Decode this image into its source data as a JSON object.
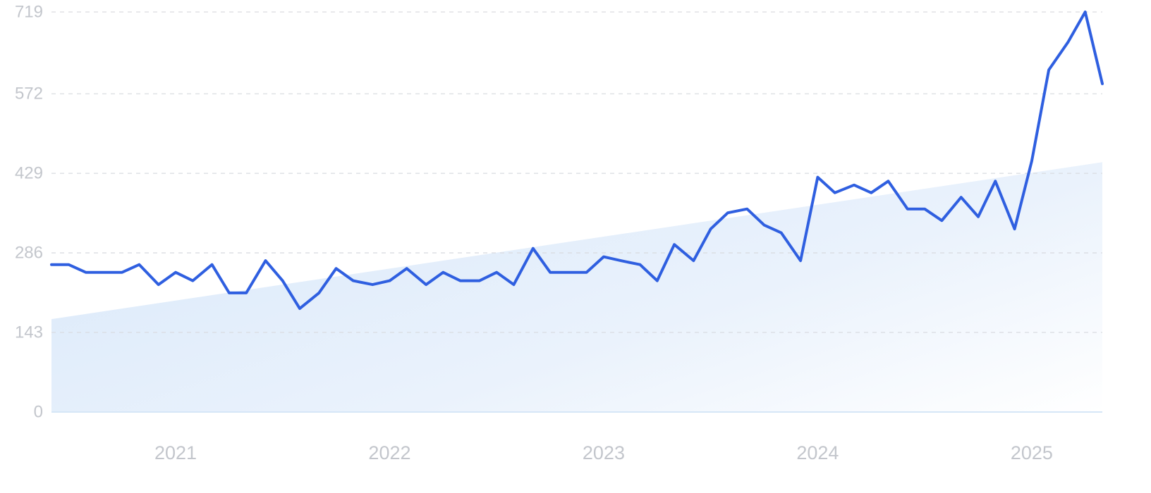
{
  "chart_data": {
    "type": "line",
    "title": "",
    "xlabel": "",
    "ylabel": "",
    "ylim": [
      0,
      719
    ],
    "y_ticks": [
      "0",
      "143",
      "286",
      "429",
      "572",
      "719"
    ],
    "x_ticks": [
      "2021",
      "2022",
      "2023",
      "2024",
      "2025"
    ],
    "x_tick_values": [
      2021.0,
      2022.0,
      2023.0,
      2024.0,
      2025.0
    ],
    "xlim": [
      2020.42,
      2025.33
    ],
    "grid": true,
    "legend": "none",
    "colors": {
      "line": "#2f5fe0",
      "trend_fill": "#dceafa",
      "grid": "#d9dce1",
      "tick_text": "#c3c6cc"
    },
    "trend": {
      "x": [
        2020.42,
        2025.33
      ],
      "y": [
        167,
        449
      ]
    },
    "series": [
      {
        "x": [
          2020.42,
          2020.5,
          2020.58,
          2020.67,
          2020.75,
          2020.83,
          2020.92,
          2021.0,
          2021.08,
          2021.17,
          2021.25,
          2021.33,
          2021.42,
          2021.5,
          2021.58,
          2021.67,
          2021.75,
          2021.83,
          2021.92,
          2022.0,
          2022.08,
          2022.17,
          2022.25,
          2022.33,
          2022.42,
          2022.5,
          2022.58,
          2022.67,
          2022.75,
          2022.83,
          2022.92,
          2023.0,
          2023.08,
          2023.17,
          2023.25,
          2023.33,
          2023.42,
          2023.5,
          2023.58,
          2023.67,
          2023.75,
          2023.83,
          2023.92,
          2024.0,
          2024.08,
          2024.17,
          2024.25,
          2024.33,
          2024.42,
          2024.5,
          2024.58,
          2024.67,
          2024.75,
          2024.83,
          2024.92,
          2025.0,
          2025.08,
          2025.17,
          2025.25,
          2025.33
        ],
        "values": [
          265,
          265,
          251,
          251,
          251,
          265,
          229,
          251,
          236,
          265,
          214,
          214,
          272,
          236,
          186,
          214,
          258,
          236,
          229,
          236,
          258,
          229,
          251,
          236,
          236,
          251,
          229,
          294,
          251,
          251,
          251,
          279,
          272,
          265,
          236,
          301,
          272,
          329,
          358,
          365,
          336,
          322,
          272,
          422,
          394,
          408,
          394,
          415,
          365,
          365,
          344,
          386,
          351,
          415,
          329,
          451,
          615,
          665,
          719,
          590
        ]
      }
    ]
  }
}
